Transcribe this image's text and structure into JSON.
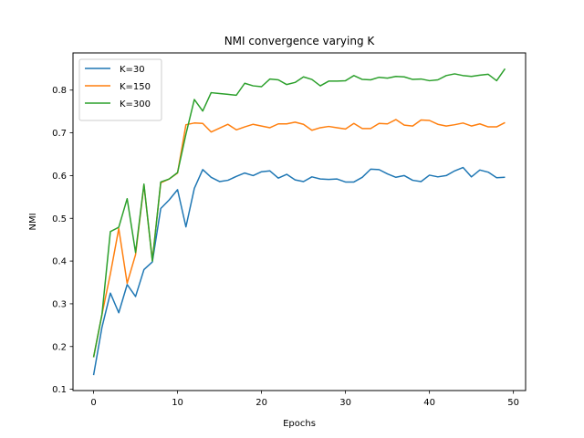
{
  "chart_data": {
    "type": "line",
    "title": "NMI convergence varying K",
    "xlabel": "Epochs",
    "ylabel": "NMI",
    "xlim": [
      -2.45,
      51.45
    ],
    "ylim": [
      0.097,
      0.887
    ],
    "xticks": [
      0,
      10,
      20,
      30,
      40,
      50
    ],
    "yticks": [
      0.1,
      0.2,
      0.3,
      0.4,
      0.5,
      0.6,
      0.7,
      0.8
    ],
    "grid": false,
    "legend_position": "top-left",
    "x": [
      0,
      1,
      2,
      3,
      4,
      5,
      6,
      7,
      8,
      9,
      10,
      11,
      12,
      13,
      14,
      15,
      16,
      17,
      18,
      19,
      20,
      21,
      22,
      23,
      24,
      25,
      26,
      27,
      28,
      29,
      30,
      31,
      32,
      33,
      34,
      35,
      36,
      37,
      38,
      39,
      40,
      41,
      42,
      43,
      44,
      45,
      46,
      47,
      48,
      49
    ],
    "series": [
      {
        "name": "K=30",
        "color": "#1f77b4",
        "values": [
          0.133,
          0.245,
          0.325,
          0.279,
          0.345,
          0.317,
          0.38,
          0.398,
          0.523,
          0.543,
          0.567,
          0.48,
          0.57,
          0.614,
          0.596,
          0.586,
          0.589,
          0.598,
          0.606,
          0.6,
          0.609,
          0.611,
          0.594,
          0.603,
          0.59,
          0.586,
          0.597,
          0.592,
          0.591,
          0.592,
          0.585,
          0.585,
          0.596,
          0.615,
          0.614,
          0.604,
          0.596,
          0.6,
          0.589,
          0.586,
          0.601,
          0.597,
          0.6,
          0.611,
          0.619,
          0.597,
          0.613,
          0.608,
          0.595,
          0.596
        ]
      },
      {
        "name": "K=150",
        "color": "#ff7f0e",
        "values": [
          0.175,
          0.275,
          0.37,
          0.476,
          0.348,
          0.415,
          0.578,
          0.402,
          0.583,
          0.592,
          0.606,
          0.719,
          0.723,
          0.722,
          0.702,
          0.711,
          0.72,
          0.707,
          0.714,
          0.72,
          0.716,
          0.712,
          0.721,
          0.721,
          0.725,
          0.72,
          0.706,
          0.712,
          0.715,
          0.712,
          0.709,
          0.722,
          0.71,
          0.71,
          0.722,
          0.721,
          0.731,
          0.718,
          0.716,
          0.73,
          0.729,
          0.72,
          0.716,
          0.719,
          0.723,
          0.716,
          0.721,
          0.714,
          0.714,
          0.724
        ]
      },
      {
        "name": "K=300",
        "color": "#2ca02c",
        "values": [
          0.175,
          0.275,
          0.469,
          0.479,
          0.546,
          0.42,
          0.58,
          0.4,
          0.585,
          0.592,
          0.607,
          0.697,
          0.778,
          0.751,
          0.794,
          0.792,
          0.79,
          0.788,
          0.816,
          0.81,
          0.808,
          0.826,
          0.824,
          0.813,
          0.818,
          0.831,
          0.825,
          0.81,
          0.821,
          0.821,
          0.822,
          0.834,
          0.825,
          0.824,
          0.83,
          0.828,
          0.832,
          0.831,
          0.825,
          0.826,
          0.822,
          0.824,
          0.834,
          0.838,
          0.834,
          0.832,
          0.835,
          0.837,
          0.822,
          0.85
        ]
      }
    ]
  }
}
